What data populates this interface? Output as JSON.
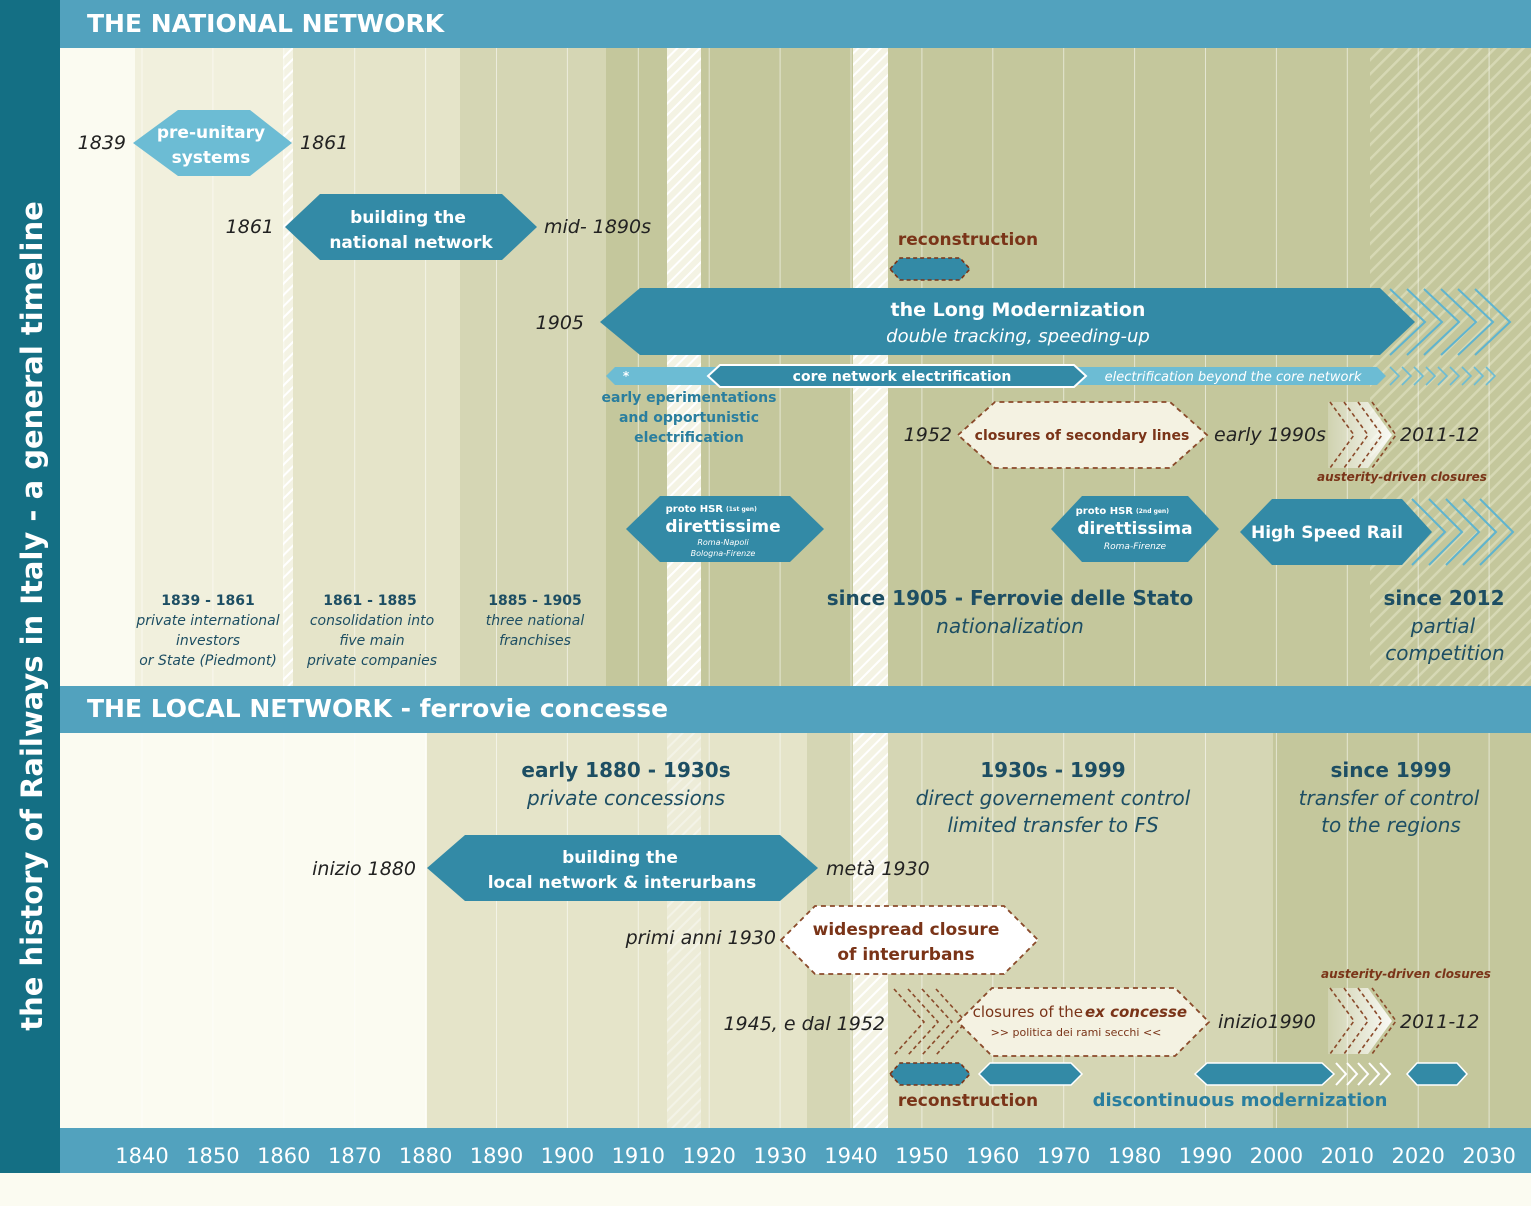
{
  "side_title": "the history of Railways in Italy - a general timeline",
  "national": {
    "title": "THE NATIONAL NETWORK",
    "items": [
      {
        "start": 1839,
        "end": 1861,
        "lines": [
          "pre-unitary",
          "systems"
        ],
        "left_label": "1839",
        "right_label": "1861"
      },
      {
        "start": 1861,
        "end": 1895,
        "lines": [
          "building the",
          "national network"
        ],
        "left_label": "1861",
        "right_label": "mid- 1890s"
      },
      {
        "lines": [
          "reconstruction"
        ]
      },
      {
        "start": 1905,
        "lines": [
          "the Long Modernization",
          "double tracking, speeding-up"
        ],
        "left_label": "1905"
      },
      {
        "lines": [
          "*",
          "core network electrification",
          "electrification beyond the core network",
          "early eperimentations",
          "and opportunistic",
          "electrification"
        ]
      },
      {
        "start": 1952,
        "end": 1990,
        "lines": [
          "closures of secondary lines"
        ],
        "left_label": "1952",
        "right_label": "early 1990s"
      },
      {
        "lines": [
          "2011-12",
          "austerity-driven closures"
        ]
      },
      {
        "lines": [
          "proto HSR",
          "(1st gen)",
          "direttissime",
          "Roma-Napoli",
          "Bologna-Firenze"
        ]
      },
      {
        "lines": [
          "proto HSR",
          "(2nd gen)",
          "direttissima",
          "Roma-Firenze"
        ]
      },
      {
        "lines": [
          "High Speed Rail"
        ]
      }
    ],
    "periods": [
      {
        "lines": [
          "1839 - 1861",
          "private international",
          "investors",
          "or State (Piedmont)"
        ]
      },
      {
        "lines": [
          "1861 - 1885",
          "consolidation into",
          "five main",
          "private companies"
        ]
      },
      {
        "lines": [
          "1885 - 1905",
          "three  national",
          "franchises"
        ]
      },
      {
        "lines": [
          "since 1905 - Ferrovie delle Stato",
          "nationalization"
        ]
      },
      {
        "lines": [
          "since 2012",
          "partial",
          "competition"
        ]
      }
    ]
  },
  "local": {
    "title": "THE LOCAL NETWORK - ferrovie concesse",
    "periods": [
      {
        "lines": [
          "early 1880 - 1930s",
          "private concessions"
        ]
      },
      {
        "lines": [
          "1930s - 1999",
          "direct governement control",
          "limited transfer to FS"
        ]
      },
      {
        "lines": [
          "since 1999",
          "transfer of control",
          "to the regions"
        ]
      }
    ],
    "items": [
      {
        "start": 1880,
        "end": 1935,
        "lines": [
          "building the",
          "local network & interurbans"
        ],
        "left_label": "inizio 1880",
        "right_label": "metà 1930"
      },
      {
        "lines": [
          "widespread closure",
          "of interurbans"
        ],
        "left_label": "primi anni 1930"
      },
      {
        "lines": [
          "closures of the ",
          "ex concesse",
          ">> politica dei rami secchi <<"
        ],
        "left_label": "1945, e dal 1952",
        "right_label": "inizio1990"
      },
      {
        "lines": [
          "austerity-driven closures",
          "2011-12"
        ]
      },
      {
        "lines": [
          "reconstruction",
          "discontinuous modernization"
        ]
      }
    ]
  },
  "axis": {
    "ticks": [
      "1840",
      "1850",
      "1860",
      "1870",
      "1880",
      "1890",
      "1900",
      "1910",
      "1920",
      "1930",
      "1940",
      "1950",
      "1960",
      "1970",
      "1980",
      "1990",
      "2000",
      "2010",
      "2020",
      "2030"
    ]
  },
  "colors": {
    "teal": "#338aa6",
    "light_teal": "#6cbcd4",
    "dark_side": "#146f84",
    "band": "#52a2be",
    "brown": "#7a3418"
  }
}
